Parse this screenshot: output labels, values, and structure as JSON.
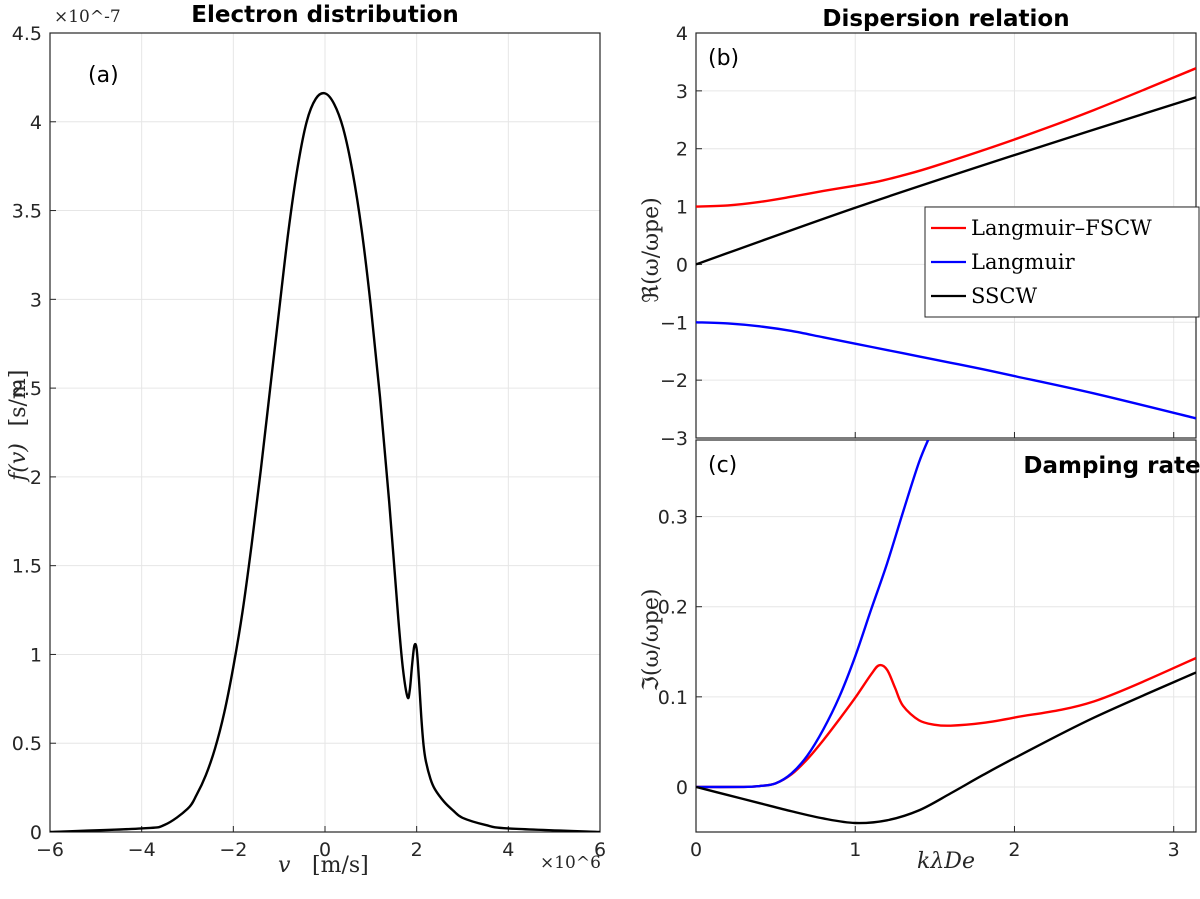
{
  "chart_data": [
    {
      "id": "a",
      "type": "line",
      "title": "Electron distribution",
      "panel_label": "(a)",
      "xlabel_var": "v",
      "xlabel_units": "[m/s]",
      "ylabel_var": "f(v)",
      "ylabel_units": "[s/m]",
      "x_exponent": "×10^6",
      "y_exponent": "×10^-7",
      "xlim": [
        -6,
        6
      ],
      "ylim": [
        0,
        4.5
      ],
      "xticks": [
        -6,
        -4,
        -2,
        0,
        2,
        4,
        6
      ],
      "yticks": [
        0,
        0.5,
        1,
        1.5,
        2,
        2.5,
        3,
        3.5,
        4,
        4.5
      ],
      "series": [
        {
          "name": "f(v)",
          "color": "#000000",
          "x": [
            -6,
            -4,
            -3.5,
            -3,
            -2.8,
            -2.6,
            -2.4,
            -2.2,
            -2,
            -1.8,
            -1.6,
            -1.4,
            -1.2,
            -1,
            -0.8,
            -0.6,
            -0.4,
            -0.2,
            0,
            0.2,
            0.4,
            0.6,
            0.8,
            1,
            1.2,
            1.4,
            1.6,
            1.7,
            1.8,
            1.85,
            1.9,
            1.95,
            2,
            2.05,
            2.1,
            2.15,
            2.2,
            2.3,
            2.4,
            2.6,
            2.8,
            3,
            3.5,
            4,
            6
          ],
          "y": [
            0,
            0.02,
            0.04,
            0.13,
            0.21,
            0.32,
            0.47,
            0.67,
            0.93,
            1.24,
            1.62,
            2.04,
            2.49,
            2.94,
            3.38,
            3.74,
            4.0,
            4.13,
            4.16,
            4.1,
            3.96,
            3.72,
            3.39,
            2.96,
            2.45,
            1.86,
            1.2,
            0.92,
            0.76,
            0.8,
            0.94,
            1.05,
            1.03,
            0.86,
            0.65,
            0.49,
            0.4,
            0.3,
            0.24,
            0.17,
            0.12,
            0.08,
            0.04,
            0.02,
            0
          ]
        }
      ]
    },
    {
      "id": "b",
      "type": "line",
      "title": "Dispersion relation",
      "panel_label": "(b)",
      "ylabel": "ℜ(ω/ωpe)",
      "xlim": [
        0,
        3.14
      ],
      "ylim": [
        -3,
        4
      ],
      "yticks": [
        -3,
        -2,
        -1,
        0,
        1,
        2,
        3,
        4
      ],
      "xticks": [
        0,
        1,
        2,
        3
      ],
      "legend": [
        "Langmuir–FSCW",
        "Langmuir",
        "SSCW"
      ],
      "series": [
        {
          "name": "Langmuir–FSCW",
          "color": "#ff0000",
          "x": [
            0,
            0.2,
            0.4,
            0.6,
            0.8,
            1.0,
            1.1,
            1.17,
            1.3,
            1.5,
            2.0,
            2.5,
            3.14
          ],
          "y": [
            1.0,
            1.02,
            1.08,
            1.17,
            1.27,
            1.36,
            1.41,
            1.45,
            1.54,
            1.7,
            2.16,
            2.67,
            3.39
          ]
        },
        {
          "name": "Langmuir",
          "color": "#0000ff",
          "x": [
            0,
            0.2,
            0.4,
            0.6,
            0.8,
            1.0,
            1.2,
            1.4,
            1.6,
            1.8,
            2.0,
            2.5,
            3.14
          ],
          "y": [
            -1.0,
            -1.02,
            -1.07,
            -1.15,
            -1.26,
            -1.37,
            -1.48,
            -1.59,
            -1.7,
            -1.81,
            -1.93,
            -2.23,
            -2.66
          ]
        },
        {
          "name": "SSCW",
          "color": "#000000",
          "x": [
            0,
            1,
            2,
            3.14
          ],
          "y": [
            0,
            0.98,
            1.89,
            2.89
          ]
        }
      ]
    },
    {
      "id": "c",
      "type": "line",
      "title": "Damping rate",
      "panel_label": "(c)",
      "ylabel": "ℑ(ω/ωpe)",
      "xlabel": "kλDe",
      "xlim": [
        0,
        3.14
      ],
      "ylim": [
        -0.05,
        0.385
      ],
      "yticks": [
        0,
        0.1,
        0.2,
        0.3
      ],
      "xticks": [
        0,
        1,
        2,
        3
      ],
      "series": [
        {
          "name": "Langmuir–FSCW",
          "color": "#ff0000",
          "x": [
            0,
            0.3,
            0.4,
            0.5,
            0.6,
            0.7,
            0.8,
            0.9,
            1.0,
            1.1,
            1.15,
            1.2,
            1.25,
            1.3,
            1.4,
            1.5,
            1.6,
            1.8,
            2.0,
            2.5,
            3.14
          ],
          "y": [
            0,
            0,
            0.001,
            0.004,
            0.014,
            0.031,
            0.052,
            0.075,
            0.099,
            0.125,
            0.135,
            0.13,
            0.11,
            0.09,
            0.074,
            0.069,
            0.068,
            0.071,
            0.077,
            0.095,
            0.143
          ]
        },
        {
          "name": "Langmuir",
          "color": "#0000ff",
          "x": [
            0,
            0.3,
            0.4,
            0.5,
            0.6,
            0.7,
            0.8,
            0.9,
            1.0,
            1.1,
            1.2,
            1.3,
            1.4,
            1.47
          ],
          "y": [
            0,
            0,
            0.001,
            0.004,
            0.015,
            0.035,
            0.064,
            0.1,
            0.145,
            0.197,
            0.248,
            0.305,
            0.36,
            0.39
          ]
        },
        {
          "name": "SSCW",
          "color": "#000000",
          "x": [
            0,
            0.2,
            0.4,
            0.6,
            0.8,
            1.0,
            1.2,
            1.4,
            1.6,
            1.8,
            2.0,
            2.5,
            3.14
          ],
          "y": [
            0,
            -0.009,
            -0.018,
            -0.027,
            -0.035,
            -0.04,
            -0.037,
            -0.026,
            -0.007,
            0.013,
            0.032,
            0.077,
            0.127
          ]
        }
      ]
    }
  ]
}
